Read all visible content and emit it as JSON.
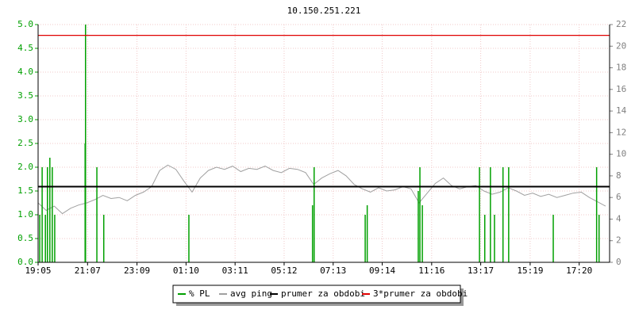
{
  "chart_data": {
    "type": "line",
    "title": "10.150.251.221",
    "xlim": [
      0,
      1410
    ],
    "xticks": [
      {
        "value": 0,
        "label": "19:05"
      },
      {
        "value": 122,
        "label": "21:07"
      },
      {
        "value": 244,
        "label": "23:09"
      },
      {
        "value": 365,
        "label": "01:10"
      },
      {
        "value": 486,
        "label": "03:11"
      },
      {
        "value": 607,
        "label": "05:12"
      },
      {
        "value": 728,
        "label": "07:13"
      },
      {
        "value": 849,
        "label": "09:14"
      },
      {
        "value": 971,
        "label": "11:16"
      },
      {
        "value": 1092,
        "label": "13:17"
      },
      {
        "value": 1214,
        "label": "15:19"
      },
      {
        "value": 1335,
        "label": "17:20"
      }
    ],
    "ylim": [
      0,
      5
    ],
    "yticks": [
      {
        "value": 0,
        "label": "0.0"
      },
      {
        "value": 0.5,
        "label": "0.5"
      },
      {
        "value": 1,
        "label": "1.0"
      },
      {
        "value": 1.5,
        "label": "1.5"
      },
      {
        "value": 2,
        "label": "2.0"
      },
      {
        "value": 2.5,
        "label": "2.5"
      },
      {
        "value": 3,
        "label": "3.0"
      },
      {
        "value": 3.5,
        "label": "3.5"
      },
      {
        "value": 4,
        "label": "4.0"
      },
      {
        "value": 4.5,
        "label": "4.5"
      },
      {
        "value": 5,
        "label": "5.0"
      }
    ],
    "y2lim": [
      0,
      22
    ],
    "y2ticks": [
      0,
      2,
      4,
      6,
      8,
      10,
      12,
      14,
      16,
      18,
      20,
      22
    ],
    "grid": true,
    "series": [
      {
        "name": "% PL",
        "color": "#00a000",
        "kind": "spikes",
        "x": [
          4,
          10,
          18,
          23,
          29,
          35,
          41,
          116,
          117,
          145,
          162,
          372,
          677,
          681,
          807,
          812,
          938,
          942,
          948,
          1089,
          1102,
          1116,
          1126,
          1147,
          1161,
          1271,
          1378,
          1384
        ],
        "values": [
          1.0,
          2.0,
          1.0,
          2.0,
          2.2,
          2.0,
          1.0,
          2.5,
          5.0,
          2.0,
          1.0,
          1.0,
          1.2,
          2.0,
          1.0,
          1.2,
          1.5,
          2.0,
          1.2,
          2.0,
          1.0,
          2.0,
          1.0,
          2.0,
          2.0,
          1.0,
          2.0,
          1.0
        ]
      },
      {
        "name": "avg ping",
        "color": "#a0a0a0",
        "kind": "line",
        "axis": "y2",
        "x": [
          0,
          20,
          40,
          60,
          80,
          100,
          120,
          140,
          160,
          180,
          200,
          220,
          240,
          260,
          280,
          300,
          320,
          340,
          360,
          380,
          400,
          420,
          440,
          460,
          480,
          500,
          520,
          540,
          560,
          580,
          600,
          620,
          640,
          660,
          680,
          700,
          720,
          740,
          760,
          780,
          800,
          820,
          840,
          860,
          880,
          900,
          920,
          940,
          960,
          980,
          1000,
          1020,
          1040,
          1060,
          1080,
          1100,
          1120,
          1140,
          1160,
          1180,
          1200,
          1220,
          1240,
          1260,
          1280,
          1300,
          1320,
          1340,
          1360,
          1380,
          1400
        ],
        "values": [
          5.5,
          4.8,
          5.2,
          4.5,
          5.0,
          5.3,
          5.5,
          5.8,
          6.2,
          5.9,
          6.0,
          5.7,
          6.2,
          6.5,
          7.0,
          8.5,
          9.0,
          8.6,
          7.5,
          6.5,
          7.8,
          8.5,
          8.8,
          8.6,
          8.9,
          8.4,
          8.7,
          8.6,
          8.9,
          8.5,
          8.3,
          8.7,
          8.6,
          8.3,
          7.2,
          7.8,
          8.2,
          8.5,
          8.0,
          7.2,
          6.8,
          6.5,
          6.9,
          6.6,
          6.7,
          7.0,
          6.8,
          5.5,
          6.4,
          7.3,
          7.8,
          7.1,
          6.8,
          7.0,
          7.1,
          6.6,
          6.3,
          6.5,
          6.9,
          6.6,
          6.2,
          6.4,
          6.1,
          6.3,
          6.0,
          6.2,
          6.4,
          6.5,
          6.0,
          5.6,
          5.2
        ]
      },
      {
        "name": "prumer za obdobi",
        "color": "#000000",
        "kind": "hline",
        "axis": "y2",
        "value": 7
      },
      {
        "name": "3*prumer za obdobi",
        "color": "#e00000",
        "kind": "hline",
        "axis": "y2",
        "value": 21
      }
    ]
  }
}
